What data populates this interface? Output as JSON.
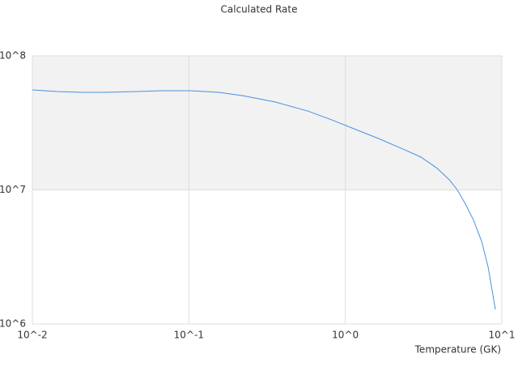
{
  "chart_data": {
    "type": "line",
    "title": "Calculated Rate",
    "x_label": "Temperature (GK)",
    "log_x": true,
    "log_y": true,
    "grid": true,
    "band": true,
    "xlim": [
      0.01,
      10
    ],
    "ylim": [
      1000000,
      100000000
    ],
    "xticks": [
      {
        "value": 0.01,
        "label": "10^-2"
      },
      {
        "value": 0.1,
        "label": "10^-1"
      },
      {
        "value": 1,
        "label": "10^0"
      },
      {
        "value": 10,
        "label": "10^1"
      }
    ],
    "yticks": [
      {
        "value": 1000000,
        "label": "10^6"
      },
      {
        "value": 10000000,
        "label": "10^7"
      },
      {
        "value": 100000000,
        "label": "10^8"
      }
    ],
    "series": [
      {
        "color": "#4a90e2",
        "x": [
          0.01,
          0.0143,
          0.0204,
          0.0292,
          0.0471,
          0.0673,
          0.102,
          0.155,
          0.221,
          0.356,
          0.574,
          0.82,
          1.17,
          1.67,
          2.4,
          3.04,
          3.86,
          4.62,
          5.2,
          5.86,
          6.6,
          7.43,
          8.18,
          9.1
        ],
        "values": [
          55700000,
          54200000,
          53500000,
          53500000,
          54200000,
          55000000,
          55000000,
          53500000,
          50500000,
          45300000,
          38800000,
          33300000,
          28200000,
          23900000,
          19900000,
          17600000,
          14500000,
          11900000,
          10000000,
          7840000,
          5930000,
          4130000,
          2650000,
          1280000
        ]
      }
    ]
  }
}
